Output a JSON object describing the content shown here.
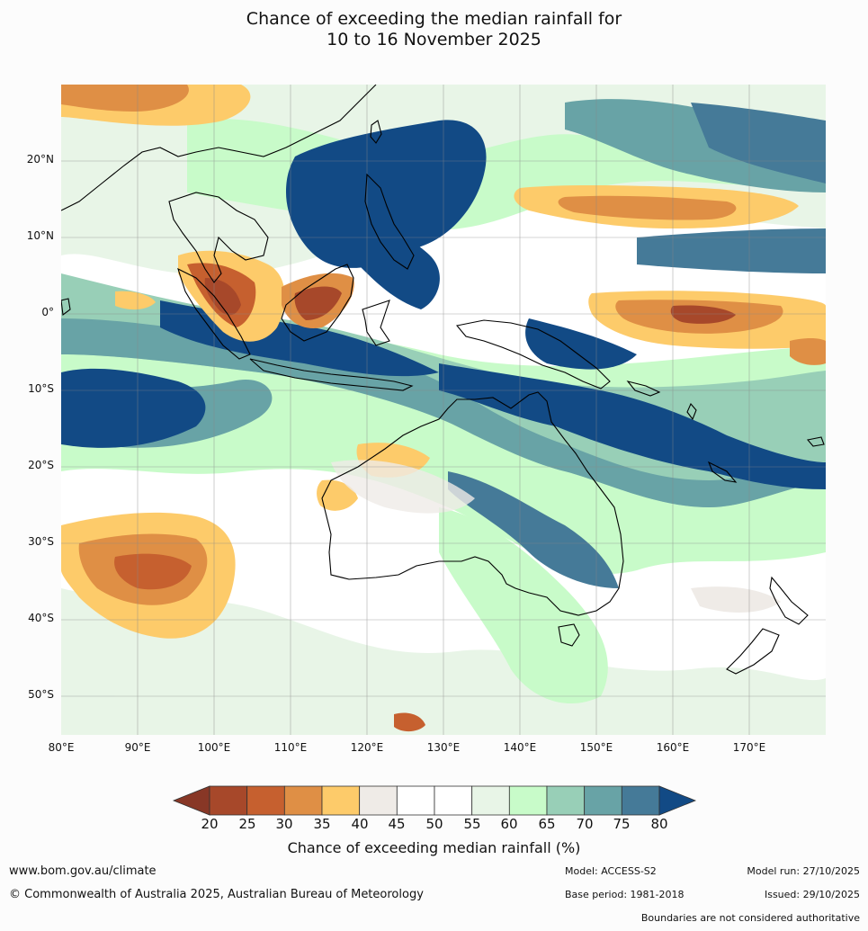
{
  "title": {
    "line1": "Chance of exceeding the median rainfall for",
    "line2": "10 to 16 November 2025"
  },
  "map": {
    "lat_labels": [
      "20°N",
      "10°N",
      "0°",
      "10°S",
      "20°S",
      "30°S",
      "40°S",
      "50°S"
    ],
    "lat_values": [
      20,
      10,
      0,
      -10,
      -20,
      -30,
      -40,
      -50
    ],
    "lon_labels": [
      "80°E",
      "90°E",
      "100°E",
      "110°E",
      "120°E",
      "130°E",
      "140°E",
      "150°E",
      "160°E",
      "170°E"
    ],
    "lon_values": [
      80,
      90,
      100,
      110,
      120,
      130,
      140,
      150,
      160,
      170
    ],
    "extent": {
      "lon_min": 80,
      "lon_max": 180,
      "lat_min": -55,
      "lat_max": 30
    }
  },
  "colorbar": {
    "ticks": [
      "20",
      "25",
      "30",
      "35",
      "40",
      "45",
      "50",
      "55",
      "60",
      "65",
      "70",
      "75",
      "80"
    ],
    "colors": [
      "#a7482a",
      "#c6602f",
      "#df8f45",
      "#fdcb6a",
      "#efebe7",
      "#ffffff",
      "#ffffff",
      "#e8f5e7",
      "#c8fbc9",
      "#98cfb7",
      "#68a3a6",
      "#457a98"
    ],
    "under_color": "#883726",
    "over_color": "#124a85",
    "label": "Chance of exceeding median rainfall (%)"
  },
  "footer": {
    "website": "www.bom.gov.au/climate",
    "copyright": "© Commonwealth of Australia 2025, Australian Bureau of Meteorology",
    "model": "Model: ACCESS-S2",
    "base_period": "Base period: 1981-2018",
    "model_run": "Model run: 27/10/2025",
    "issued": "Issued: 29/10/2025",
    "disclaimer": "Boundaries are not considered authoritative"
  }
}
